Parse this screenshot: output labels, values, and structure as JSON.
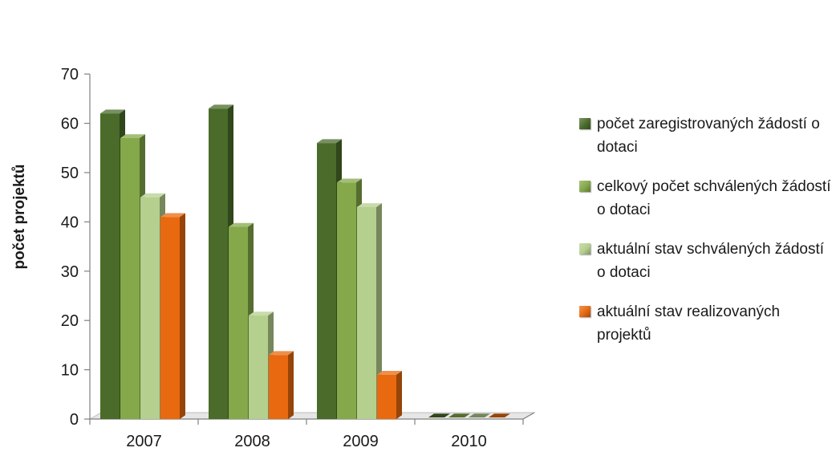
{
  "chart_data": {
    "type": "bar",
    "title": "",
    "xlabel": "",
    "ylabel": "počet projektů",
    "ylim": [
      0,
      70
    ],
    "yticks": [
      0,
      10,
      20,
      30,
      40,
      50,
      60,
      70
    ],
    "categories": [
      "2007",
      "2008",
      "2009",
      "2010"
    ],
    "legend_position": "right",
    "grid": false,
    "series": [
      {
        "name": "počet zaregistrovaných žádostí o dotaci",
        "color": "#4a6b2a",
        "values": [
          62,
          63,
          56,
          0
        ]
      },
      {
        "name": "celkový počet schválených žádostí o dotaci",
        "color": "#84a84a",
        "values": [
          57,
          39,
          48,
          0
        ]
      },
      {
        "name": "aktuální stav schválených žádostí o dotaci",
        "color": "#b5cf8e",
        "values": [
          45,
          21,
          43,
          0
        ]
      },
      {
        "name": "aktuální stav realizovaných projektů",
        "color": "#e8690f",
        "values": [
          41,
          13,
          9,
          0
        ]
      }
    ]
  }
}
